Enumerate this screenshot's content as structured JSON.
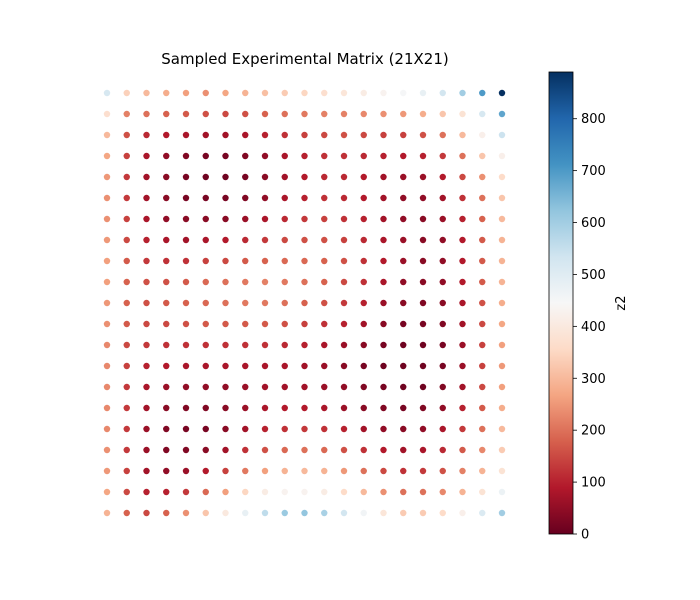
{
  "chart_data": {
    "type": "scatter",
    "title": "Sampled Experimental Matrix (21X21)",
    "grid": false,
    "axes_visible": false,
    "colormap": "RdBu",
    "grid_size": [
      21,
      21
    ],
    "colorbar": {
      "label": "z2",
      "range": [
        0,
        890
      ],
      "ticks": [
        0,
        100,
        200,
        300,
        400,
        500,
        600,
        700,
        800
      ],
      "stops": [
        "#67001f",
        "#b2182b",
        "#d6604d",
        "#f4a582",
        "#fddbc7",
        "#f7f7f7",
        "#d1e5f0",
        "#92c5de",
        "#4393c3",
        "#2166ac",
        "#053061"
      ]
    },
    "z_rows_top_to_bottom": [
      [
        520,
        340,
        300,
        280,
        260,
        240,
        270,
        290,
        310,
        330,
        350,
        370,
        390,
        410,
        430,
        450,
        480,
        530,
        600,
        700,
        890
      ],
      [
        370,
        220,
        200,
        180,
        170,
        160,
        150,
        160,
        180,
        200,
        210,
        220,
        220,
        230,
        240,
        250,
        280,
        320,
        380,
        520,
        680
      ],
      [
        300,
        160,
        110,
        90,
        80,
        70,
        70,
        80,
        100,
        120,
        140,
        150,
        160,
        150,
        140,
        140,
        160,
        200,
        300,
        420,
        540
      ],
      [
        270,
        140,
        80,
        50,
        30,
        20,
        20,
        30,
        50,
        80,
        100,
        120,
        120,
        110,
        100,
        90,
        100,
        130,
        200,
        320,
        420
      ],
      [
        250,
        130,
        70,
        40,
        20,
        10,
        10,
        20,
        40,
        70,
        90,
        110,
        110,
        90,
        70,
        60,
        60,
        90,
        150,
        240,
        360
      ],
      [
        240,
        130,
        70,
        40,
        20,
        20,
        20,
        30,
        50,
        80,
        100,
        120,
        110,
        90,
        70,
        50,
        50,
        70,
        120,
        200,
        320
      ],
      [
        240,
        140,
        80,
        50,
        40,
        40,
        40,
        60,
        80,
        110,
        130,
        140,
        120,
        100,
        70,
        50,
        40,
        60,
        100,
        180,
        300
      ],
      [
        250,
        150,
        100,
        80,
        70,
        80,
        90,
        110,
        130,
        150,
        160,
        160,
        140,
        110,
        80,
        60,
        40,
        50,
        90,
        170,
        290
      ],
      [
        260,
        170,
        130,
        120,
        120,
        140,
        150,
        170,
        180,
        190,
        190,
        180,
        160,
        120,
        90,
        60,
        40,
        50,
        90,
        170,
        290
      ],
      [
        260,
        180,
        160,
        160,
        170,
        190,
        200,
        210,
        220,
        210,
        200,
        180,
        150,
        120,
        80,
        50,
        40,
        50,
        90,
        170,
        290
      ],
      [
        250,
        180,
        160,
        170,
        180,
        190,
        200,
        210,
        210,
        200,
        180,
        160,
        130,
        100,
        60,
        40,
        30,
        40,
        80,
        160,
        280
      ],
      [
        240,
        170,
        150,
        150,
        160,
        170,
        170,
        170,
        170,
        160,
        140,
        120,
        100,
        70,
        40,
        20,
        20,
        30,
        70,
        150,
        270
      ],
      [
        230,
        150,
        130,
        120,
        120,
        120,
        120,
        120,
        120,
        110,
        100,
        80,
        60,
        40,
        20,
        10,
        10,
        20,
        60,
        140,
        260
      ],
      [
        230,
        140,
        100,
        90,
        80,
        80,
        80,
        80,
        80,
        80,
        70,
        60,
        40,
        20,
        10,
        10,
        10,
        20,
        60,
        140,
        250
      ],
      [
        230,
        130,
        80,
        60,
        50,
        50,
        50,
        60,
        70,
        70,
        70,
        60,
        50,
        30,
        20,
        10,
        10,
        30,
        70,
        150,
        260
      ],
      [
        230,
        130,
        70,
        40,
        30,
        30,
        40,
        60,
        80,
        90,
        90,
        80,
        60,
        40,
        30,
        20,
        30,
        50,
        100,
        170,
        280
      ],
      [
        230,
        130,
        60,
        30,
        20,
        20,
        40,
        70,
        100,
        120,
        130,
        120,
        100,
        70,
        50,
        40,
        50,
        80,
        130,
        200,
        300
      ],
      [
        240,
        130,
        60,
        30,
        30,
        40,
        70,
        120,
        160,
        190,
        200,
        190,
        160,
        120,
        90,
        70,
        80,
        110,
        170,
        230,
        330
      ],
      [
        250,
        140,
        70,
        50,
        60,
        90,
        140,
        210,
        260,
        290,
        300,
        290,
        250,
        200,
        150,
        120,
        130,
        160,
        220,
        290,
        380
      ],
      [
        270,
        150,
        100,
        100,
        130,
        190,
        260,
        350,
        410,
        430,
        430,
        410,
        360,
        300,
        240,
        200,
        200,
        230,
        290,
        380,
        470
      ],
      [
        290,
        180,
        150,
        180,
        240,
        320,
        400,
        480,
        560,
        610,
        620,
        590,
        530,
        460,
        390,
        330,
        330,
        360,
        420,
        510,
        600
      ]
    ]
  }
}
